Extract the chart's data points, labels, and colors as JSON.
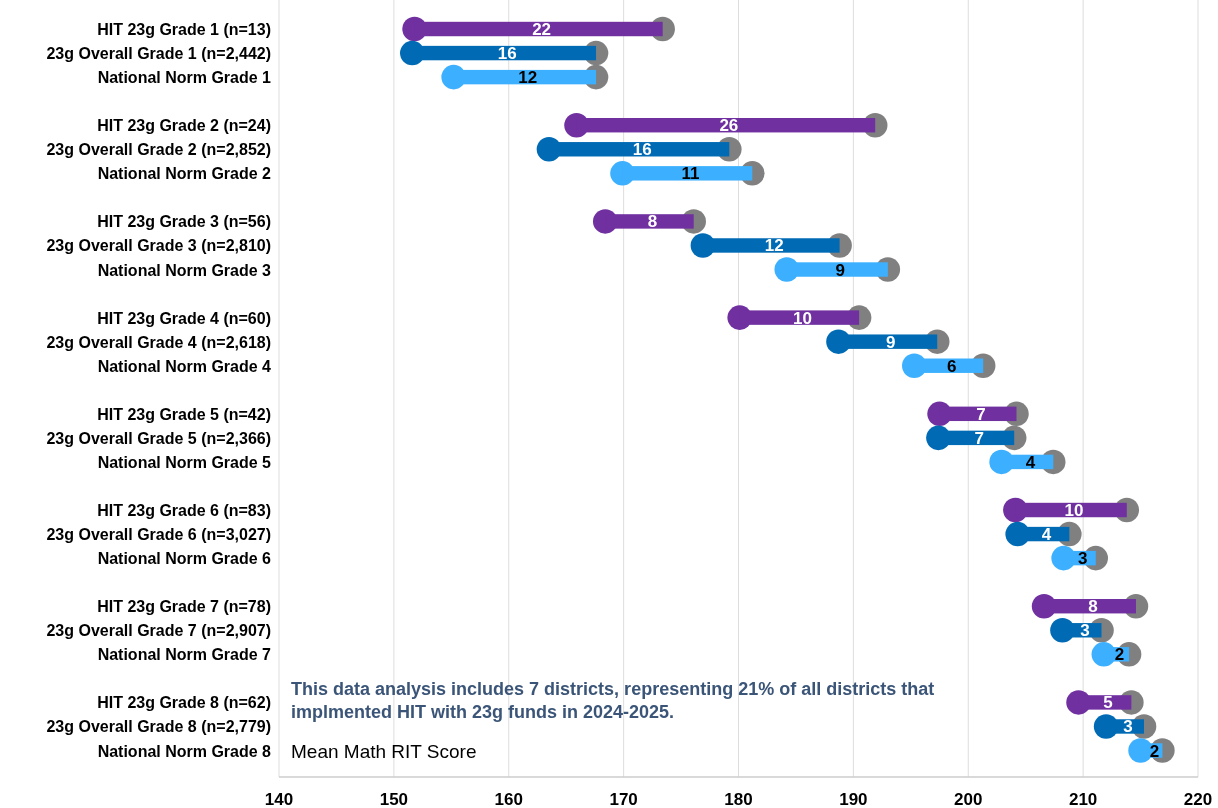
{
  "chart_data": {
    "type": "bar",
    "orientation": "horizontal",
    "marker": "circle",
    "categories": [
      "HIT 23g Grade 1 (n=13)",
      "23g Overall Grade 1 (n=2,442)",
      "National Norm Grade 1",
      null,
      "HIT 23g Grade 2 (n=24)",
      "23g Overall Grade 2 (n=2,852)",
      "National Norm Grade 2",
      null,
      "HIT 23g Grade 3 (n=56)",
      "23g Overall Grade 3 (n=2,810)",
      "National Norm Grade 3",
      null,
      "HIT 23g Grade 4 (n=60)",
      "23g Overall Grade 4 (n=2,618)",
      "National Norm Grade 4",
      null,
      "HIT 23g Grade 5 (n=42)",
      "23g Overall Grade 5 (n=2,366)",
      "National Norm Grade 5",
      null,
      "HIT 23g Grade 6 (n=83)",
      "23g Overall Grade 6 (n=3,027)",
      "National Norm Grade 6",
      null,
      "HIT 23g Grade 7 (n=78)",
      "23g Overall Grade 7 (n=2,907)",
      "National Norm Grade 7",
      null,
      "HIT 23g Grade 8 (n=62)",
      "23g Overall Grade 8 (n=2,779)",
      "National Norm Grade 8"
    ],
    "base": [
      151.8,
      151.6,
      155.2,
      null,
      165.9,
      163.5,
      169.9,
      null,
      168.4,
      176.9,
      184.2,
      null,
      180.1,
      188.7,
      195.3,
      null,
      197.5,
      197.4,
      202.9,
      null,
      204.1,
      204.3,
      208.3,
      null,
      206.6,
      208.2,
      211.8,
      null,
      209.6,
      212.0,
      215.0
    ],
    "values": [
      21.6,
      16.0,
      12.4,
      null,
      26.0,
      15.7,
      11.3,
      null,
      7.7,
      11.9,
      8.8,
      null,
      10.4,
      8.6,
      6.0,
      null,
      6.7,
      6.6,
      4.5,
      null,
      9.7,
      4.5,
      2.8,
      null,
      8.0,
      3.4,
      2.2,
      null,
      4.6,
      3.3,
      1.9
    ],
    "value_labels": [
      "22",
      "16",
      "12",
      null,
      "26",
      "16",
      "11",
      null,
      "8",
      "12",
      "9",
      null,
      "10",
      "9",
      "6",
      null,
      "7",
      "7",
      "4",
      null,
      "10",
      "4",
      "3",
      null,
      "8",
      "3",
      "2",
      null,
      "5",
      "3",
      "2"
    ],
    "colors": [
      "#7030a0",
      "#006bb4",
      "#3cb0ff",
      null,
      "#7030a0",
      "#006bb4",
      "#3cb0ff",
      null,
      "#7030a0",
      "#006bb4",
      "#3cb0ff",
      null,
      "#7030a0",
      "#006bb4",
      "#3cb0ff",
      null,
      "#7030a0",
      "#006bb4",
      "#3cb0ff",
      null,
      "#7030a0",
      "#006bb4",
      "#3cb0ff",
      null,
      "#7030a0",
      "#006bb4",
      "#3cb0ff",
      null,
      "#7030a0",
      "#006bb4",
      "#3cb0ff"
    ],
    "xlim": [
      140,
      220
    ],
    "xticks": [
      140,
      150,
      160,
      170,
      180,
      190,
      200,
      210,
      220
    ],
    "grid": "x",
    "xlabel": "Mean Math RIT Score",
    "annotations": [
      "This data analysis includes 7 districts, representing 21% of all districts that implmented HIT with 23g funds in 2024-2025."
    ]
  }
}
